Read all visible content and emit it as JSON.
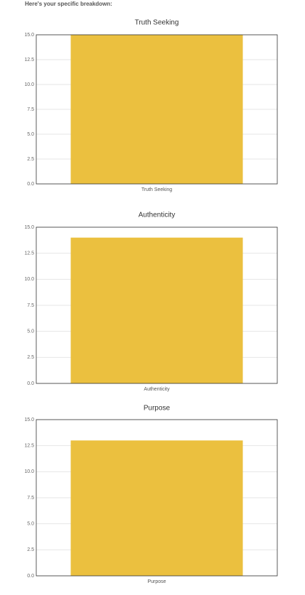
{
  "header": "Here's your specific breakdown:",
  "chart_data": [
    {
      "type": "bar",
      "title": "Truth Seeking",
      "categories": [
        "Truth Seeking"
      ],
      "values": [
        15
      ],
      "color": "#ebc03f",
      "ylim": [
        0,
        15
      ],
      "yticks": [
        {
          "value": 0,
          "label": "0.0"
        },
        2.5,
        {
          "value": 5,
          "label": "5.0"
        },
        7.5,
        {
          "value": 10,
          "label": "10.0"
        },
        12.5,
        {
          "value": 15,
          "label": "15.0"
        }
      ],
      "grid": true
    },
    {
      "type": "bar",
      "title": "Authenticity",
      "categories": [
        "Authenticity"
      ],
      "values": [
        14
      ],
      "color": "#ebc03f",
      "ylim": [
        0,
        15
      ],
      "yticks": [
        {
          "value": 0,
          "label": "0.0"
        },
        2.5,
        {
          "value": 5,
          "label": "5.0"
        },
        7.5,
        {
          "value": 10,
          "label": "10.0"
        },
        12.5,
        {
          "value": 15,
          "label": "15.0"
        }
      ],
      "grid": true
    },
    {
      "type": "bar",
      "title": "Purpose",
      "categories": [
        "Purpose"
      ],
      "values": [
        13
      ],
      "color": "#ebc03f",
      "ylim": [
        0,
        15
      ],
      "yticks": [
        {
          "value": 0,
          "label": "0.0"
        },
        2.5,
        {
          "value": 5,
          "label": "5.0"
        },
        7.5,
        {
          "value": 10,
          "label": "10.0"
        },
        12.5,
        {
          "value": 15,
          "label": "15.0"
        }
      ],
      "grid": true
    }
  ]
}
